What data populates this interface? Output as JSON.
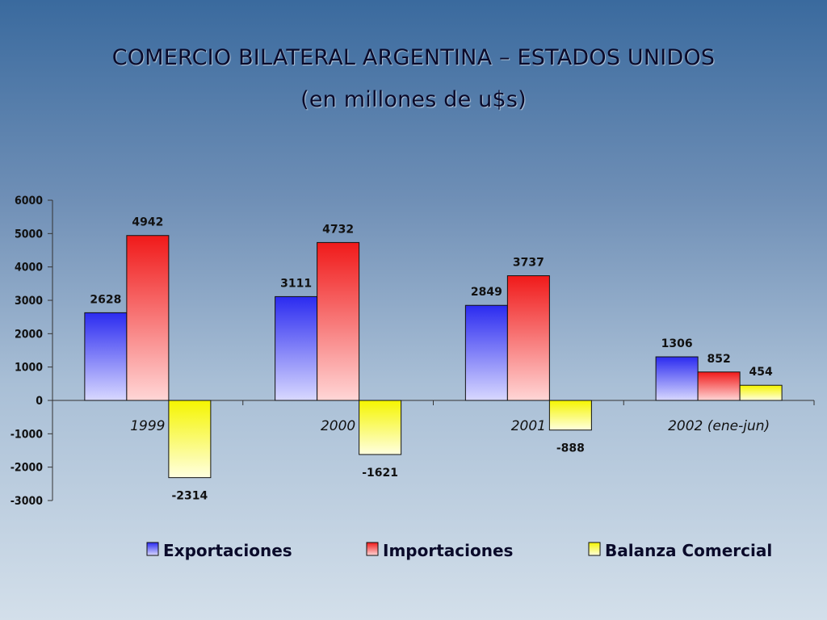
{
  "slide": {
    "title_line1": "COMERCIO BILATERAL ARGENTINA – ESTADOS UNIDOS",
    "title_line2": "(en millones de u$s)"
  },
  "chart_data": {
    "type": "bar",
    "categories": [
      "1999",
      "2000",
      "2001",
      "2002 (ene-jun)"
    ],
    "series": [
      {
        "name": "Exportaciones",
        "values": [
          2628,
          3111,
          2849,
          1306
        ],
        "color_top": "#2b2bf0",
        "color_bottom": "#d8d8ff"
      },
      {
        "name": "Importaciones",
        "values": [
          4942,
          4732,
          3737,
          852
        ],
        "color_top": "#f01a1a",
        "color_bottom": "#ffd6d6"
      },
      {
        "name": "Balanza Comercial",
        "values": [
          -2314,
          -1621,
          -888,
          454
        ],
        "color_top": "#f5f500",
        "color_bottom": "#ffffe0"
      }
    ],
    "ylim": [
      -3000,
      6000
    ],
    "yticks": [
      6000,
      5000,
      4000,
      3000,
      2000,
      1000,
      0,
      -1000,
      -2000,
      -3000
    ],
    "legend_position": "bottom"
  }
}
